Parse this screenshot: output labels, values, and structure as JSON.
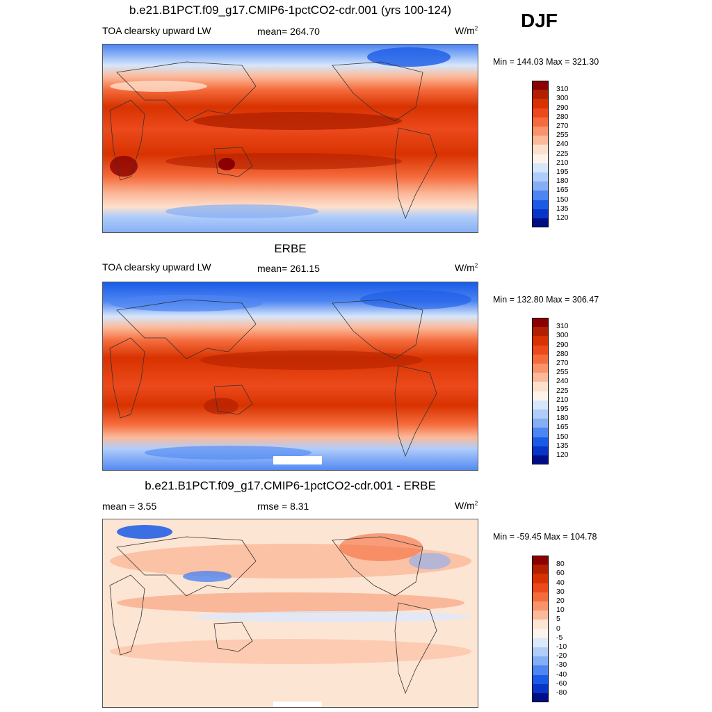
{
  "season": "DJF",
  "panels": [
    {
      "title": "b.e21.B1PCT.f09_g17.CMIP6-1pctCO2-cdr.001 (yrs 100-124)",
      "left_label": "TOA clearsky upward LW",
      "mid_label": "mean= 264.70",
      "units": "W/m",
      "units_sup": "2",
      "minmax": "Min = 144.03 Max = 321.30"
    },
    {
      "title": "ERBE",
      "left_label": "TOA clearsky upward LW",
      "mid_label": "mean= 261.15",
      "units": "W/m",
      "units_sup": "2",
      "minmax": "Min = 132.80 Max = 306.47"
    },
    {
      "title": "b.e21.B1PCT.f09_g17.CMIP6-1pctCO2-cdr.001 - ERBE",
      "left_label": "mean =   3.55",
      "mid_label": "rmse =   8.31",
      "units": "W/m",
      "units_sup": "2",
      "minmax": "Min = -59.45 Max = 104.78"
    }
  ],
  "colorbars": {
    "abs": {
      "labels": [
        "310",
        "300",
        "290",
        "280",
        "270",
        "255",
        "240",
        "225",
        "210",
        "195",
        "180",
        "165",
        "150",
        "135",
        "120"
      ],
      "colors": [
        "#8b0000",
        "#b22000",
        "#d83200",
        "#ec4a1c",
        "#f56b3c",
        "#f8936a",
        "#fbb99a",
        "#fde0cc",
        "#fdf3ea",
        "#d6e6fb",
        "#b0cdfa",
        "#85aef5",
        "#4d85f2",
        "#1a5be6",
        "#0635c8",
        "#000e86"
      ]
    },
    "diff": {
      "labels": [
        "80",
        "60",
        "40",
        "30",
        "20",
        "10",
        "5",
        "0",
        "-5",
        "-10",
        "-20",
        "-30",
        "-40",
        "-60",
        "-80"
      ],
      "colors": [
        "#8b0000",
        "#b22000",
        "#d83200",
        "#ec4a1c",
        "#f56b3c",
        "#f8936a",
        "#fbb99a",
        "#fde5d4",
        "#fbf3ee",
        "#dce8fb",
        "#b0cdfa",
        "#85aef5",
        "#4d85f2",
        "#1a5be6",
        "#0635c8",
        "#000e86"
      ]
    }
  }
}
